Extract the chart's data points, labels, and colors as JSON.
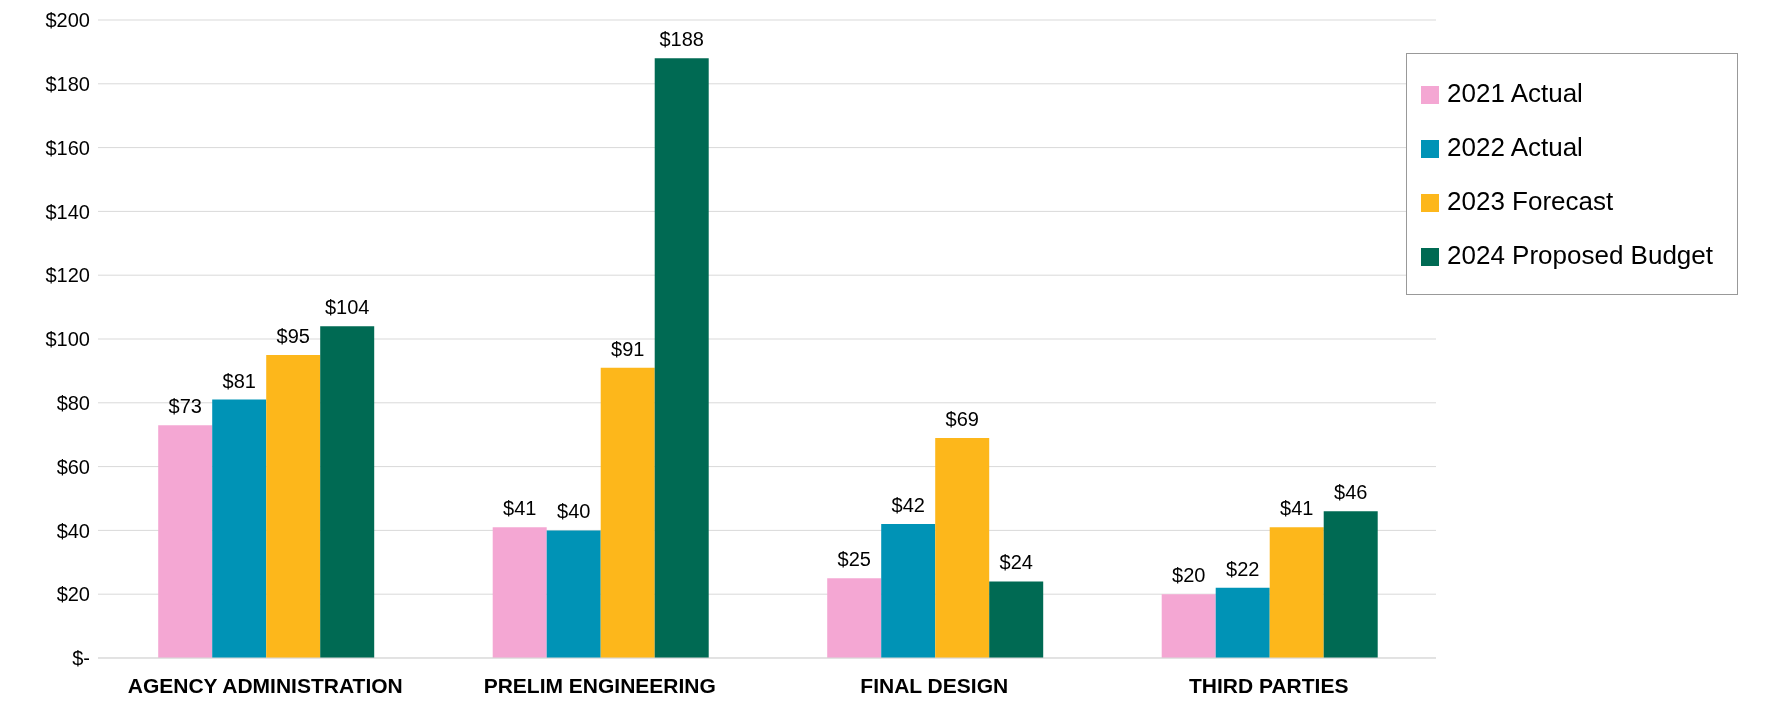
{
  "chart_data": {
    "type": "bar",
    "categories": [
      "AGENCY ADMINISTRATION",
      "PRELIM ENGINEERING",
      "FINAL DESIGN",
      "THIRD PARTIES"
    ],
    "series": [
      {
        "name": "2021 Actual",
        "color": "#f4a7d3",
        "values": [
          73,
          41,
          25,
          20
        ],
        "value_labels": [
          "$73",
          "$41",
          "$25",
          "$20"
        ]
      },
      {
        "name": "2022 Actual",
        "color": "#0093b6",
        "values": [
          81,
          40,
          42,
          22
        ],
        "value_labels": [
          "$81",
          "$40",
          "$42",
          "$22"
        ]
      },
      {
        "name": "2023 Forecast",
        "color": "#fdb71b",
        "values": [
          95,
          91,
          69,
          41
        ],
        "value_labels": [
          "$95",
          "$91",
          "$69",
          "$41"
        ]
      },
      {
        "name": "2024 Proposed Budget",
        "color": "#006a53",
        "values": [
          104,
          188,
          24,
          46
        ],
        "value_labels": [
          "$104",
          "$188",
          "$24",
          "$46"
        ]
      }
    ],
    "ylim": [
      0,
      200
    ],
    "yticks": [
      {
        "value": 0,
        "label": "$-"
      },
      {
        "value": 20,
        "label": "$20"
      },
      {
        "value": 40,
        "label": "$40"
      },
      {
        "value": 60,
        "label": "$60"
      },
      {
        "value": 80,
        "label": "$80"
      },
      {
        "value": 100,
        "label": "$100"
      },
      {
        "value": 120,
        "label": "$120"
      },
      {
        "value": 140,
        "label": "$140"
      },
      {
        "value": 160,
        "label": "$160"
      },
      {
        "value": 180,
        "label": "$180"
      },
      {
        "value": 200,
        "label": "$200"
      }
    ],
    "grid": "y",
    "legend": "top right"
  }
}
